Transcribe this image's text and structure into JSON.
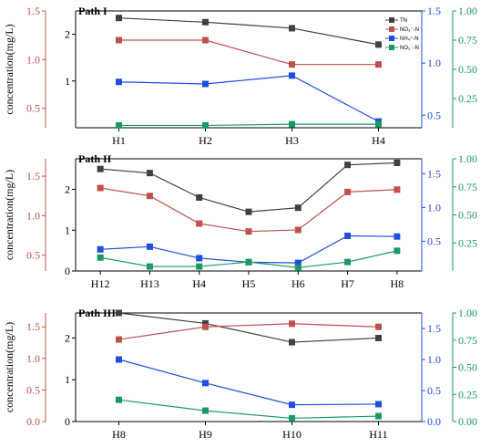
{
  "legend": [
    "TN",
    "NO₃⁻-N",
    "NH₄⁺-N",
    "NO₂⁻-N"
  ],
  "colors": {
    "TN": "#404040",
    "NO3": "#c0504d",
    "NH4": "#1f4fe0",
    "NO2": "#1a9a60",
    "axis_black": "#000000",
    "axis_red": "#c0504d",
    "axis_blue": "#1f4fe0",
    "axis_green": "#1a9a60"
  },
  "chart_data": [
    {
      "type": "line",
      "title": "Path I",
      "ylabel": "concentration(mg/L)",
      "categories": [
        "H1",
        "H2",
        "H3",
        "H4"
      ],
      "axes": {
        "TN": {
          "ylim": [
            0,
            2.5
          ],
          "ticks": [
            1,
            2
          ]
        },
        "NO3": {
          "ylim": [
            0.3,
            1.5
          ],
          "ticks": [
            0.5,
            1.0,
            1.5
          ]
        },
        "NH4": {
          "ylim": [
            0.38,
            1.5
          ],
          "ticks": [
            0.5,
            1.0,
            1.5
          ]
        },
        "NO2": {
          "ylim": [
            0,
            1.0
          ],
          "ticks": [
            0.25,
            0.5,
            0.75,
            1.0
          ]
        }
      },
      "series": [
        {
          "name": "TN",
          "values": [
            2.35,
            2.26,
            2.13,
            1.78
          ]
        },
        {
          "name": "NO₃⁻-N",
          "values": [
            1.2,
            1.2,
            0.95,
            0.95
          ]
        },
        {
          "name": "NH₄⁺-N",
          "values": [
            0.82,
            0.8,
            0.88,
            0.44
          ]
        },
        {
          "name": "NO₂⁻-N",
          "values": [
            0.02,
            0.02,
            0.03,
            0.03
          ]
        }
      ]
    },
    {
      "type": "line",
      "title": "Path II",
      "ylabel": "concentration(mg/L)",
      "categories": [
        "H12",
        "H13",
        "H4",
        "H5",
        "H6",
        "H7",
        "H8"
      ],
      "axes": {
        "TN": {
          "ylim": [
            0,
            2.75
          ],
          "ticks": [
            0,
            1,
            2
          ]
        },
        "NO3": {
          "ylim": [
            0.3,
            1.72
          ],
          "ticks": [
            0.5,
            1.0,
            1.5
          ]
        },
        "NH4": {
          "ylim": [
            0.06,
            1.72
          ],
          "ticks": [
            0.5,
            1.0,
            1.5
          ]
        },
        "NO2": {
          "ylim": [
            0,
            1.0
          ],
          "ticks": [
            0.25,
            0.5,
            0.75,
            1.0
          ]
        }
      },
      "series": [
        {
          "name": "TN",
          "values": [
            2.5,
            2.4,
            1.8,
            1.45,
            1.55,
            2.6,
            2.65
          ]
        },
        {
          "name": "NO₃⁻-N",
          "values": [
            1.35,
            1.25,
            0.9,
            0.8,
            0.82,
            1.3,
            1.33
          ]
        },
        {
          "name": "NH₄⁺-N",
          "values": [
            0.38,
            0.42,
            0.25,
            0.19,
            0.18,
            0.58,
            0.57
          ]
        },
        {
          "name": "NO₂⁻-N",
          "values": [
            0.12,
            0.04,
            0.04,
            0.08,
            0.03,
            0.08,
            0.18
          ]
        }
      ]
    },
    {
      "type": "line",
      "title": "Path III",
      "ylabel": "concentration(mg/L)",
      "categories": [
        "H8",
        "H9",
        "H10",
        "H11"
      ],
      "axes": {
        "TN": {
          "ylim": [
            0,
            2.6
          ],
          "ticks": [
            0,
            1,
            2
          ]
        },
        "NO3": {
          "ylim": [
            0.0,
            1.72
          ],
          "ticks": [
            0.0,
            0.5,
            1.0,
            1.5
          ]
        },
        "NH4": {
          "ylim": [
            0.0,
            1.75
          ],
          "ticks": [
            0.0,
            0.5,
            1.0,
            1.5
          ]
        },
        "NO2": {
          "ylim": [
            0,
            1.0
          ],
          "ticks": [
            0.0,
            0.25,
            0.5,
            0.75,
            1.0
          ]
        }
      },
      "series": [
        {
          "name": "TN",
          "values": [
            2.6,
            2.35,
            1.9,
            2.0
          ]
        },
        {
          "name": "NO₃⁻-N",
          "values": [
            1.3,
            1.5,
            1.55,
            1.5
          ]
        },
        {
          "name": "NH₄⁺-N",
          "values": [
            1.0,
            0.62,
            0.27,
            0.28
          ]
        },
        {
          "name": "NO₂⁻-N",
          "values": [
            0.2,
            0.1,
            0.03,
            0.05
          ]
        }
      ]
    }
  ]
}
